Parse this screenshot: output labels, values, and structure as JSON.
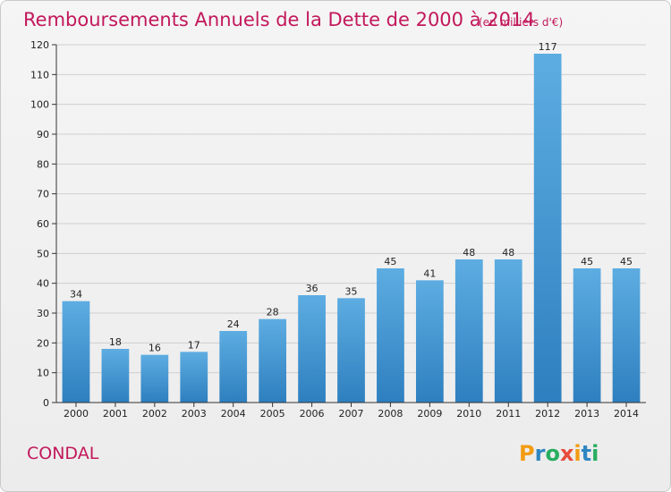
{
  "chart_data": {
    "type": "bar",
    "title": "Remboursements Annuels de la Dette de 2000 à 2014",
    "unit_note": "(en milliers d'€)",
    "categories": [
      "2000",
      "2001",
      "2002",
      "2003",
      "2004",
      "2005",
      "2006",
      "2007",
      "2008",
      "2009",
      "2010",
      "2011",
      "2012",
      "2013",
      "2014"
    ],
    "values": [
      34,
      18,
      16,
      17,
      24,
      28,
      36,
      35,
      45,
      41,
      48,
      48,
      117,
      45,
      45
    ],
    "ylim": [
      0,
      120
    ],
    "yticks": [
      0,
      10,
      20,
      30,
      40,
      50,
      60,
      70,
      80,
      90,
      100,
      110,
      120
    ],
    "grid": true,
    "xlabel": "",
    "ylabel": "",
    "bar_color_top": "#5dade2",
    "bar_color_bottom": "#2e7fbf"
  },
  "footer": {
    "place_name": "CONDAL",
    "brand_letters": [
      "P",
      "r",
      "o",
      "x",
      "i",
      "t",
      "i"
    ],
    "brand_colors": [
      "#f39c12",
      "#2e86c1",
      "#27ae60",
      "#e74c3c",
      "#f39c12",
      "#2e86c1",
      "#27ae60"
    ]
  }
}
